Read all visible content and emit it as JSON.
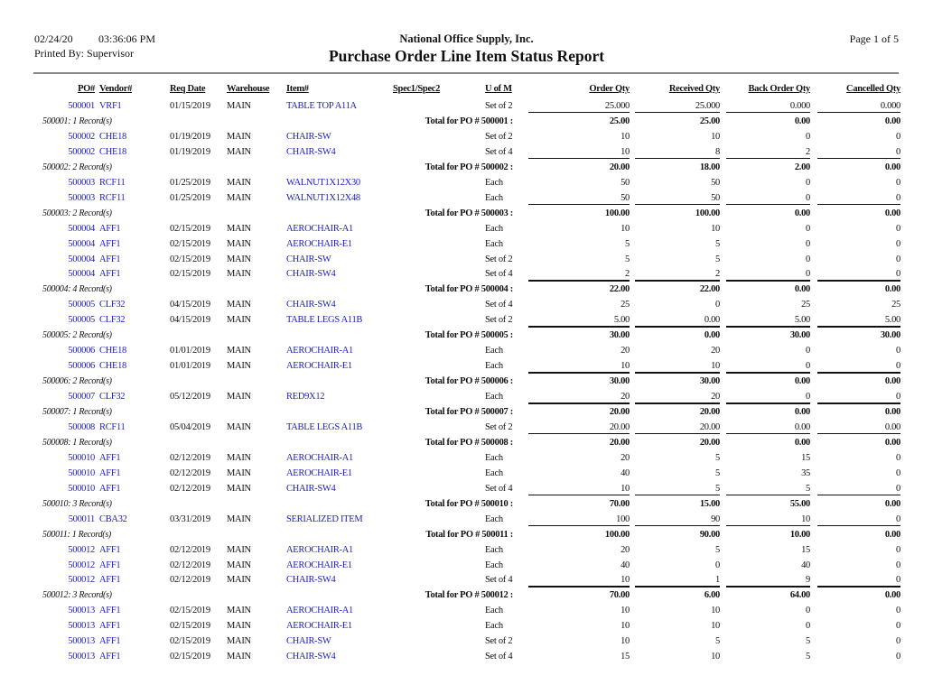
{
  "header": {
    "date": "02/24/20",
    "time": "03:36:06 PM",
    "printed_by": "Printed By: Supervisor",
    "company": "National Office Supply, Inc.",
    "title": "Purchase Order Line Item Status Report",
    "page": "Page 1 of 5"
  },
  "columns": {
    "po": "PO#",
    "vendor": "Vendor#",
    "req_date": "Req Date",
    "warehouse": "Warehouse",
    "item": "Item#",
    "spec": "Spec1/Spec2",
    "uom": "U of M",
    "order_qty": "Order Qty",
    "received_qty": "Received Qty",
    "back_order_qty": "Back Order Qty",
    "cancelled_qty": "Cancelled Qty"
  },
  "groups": [
    {
      "label": "500001: 1 Record(s)",
      "total_label": "Total for PO # 500001 :",
      "totals": [
        "25.00",
        "25.00",
        "0.00",
        "0.00"
      ],
      "rows": [
        [
          "500001",
          "VRF1",
          "01/15/2019",
          "MAIN",
          "TABLE TOP A11A",
          "",
          "Set of 2",
          "25.000",
          "25.000",
          "0.000",
          "0.000"
        ]
      ]
    },
    {
      "label": "500002: 2 Record(s)",
      "total_label": "Total for PO # 500002 :",
      "totals": [
        "20.00",
        "18.00",
        "2.00",
        "0.00"
      ],
      "rows": [
        [
          "500002",
          "CHE18",
          "01/19/2019",
          "MAIN",
          "CHAIR-SW",
          "",
          "Set of 2",
          "10",
          "10",
          "0",
          "0"
        ],
        [
          "500002",
          "CHE18",
          "01/19/2019",
          "MAIN",
          "CHAIR-SW4",
          "",
          "Set of 4",
          "10",
          "8",
          "2",
          "0"
        ]
      ]
    },
    {
      "label": "500003: 2 Record(s)",
      "total_label": "Total for PO # 500003 :",
      "totals": [
        "100.00",
        "100.00",
        "0.00",
        "0.00"
      ],
      "rows": [
        [
          "500003",
          "RCF11",
          "01/25/2019",
          "MAIN",
          "WALNUT1X12X30",
          "",
          "Each",
          "50",
          "50",
          "0",
          "0"
        ],
        [
          "500003",
          "RCF11",
          "01/25/2019",
          "MAIN",
          "WALNUT1X12X48",
          "",
          "Each",
          "50",
          "50",
          "0",
          "0"
        ]
      ]
    },
    {
      "label": "500004: 4 Record(s)",
      "total_label": "Total for PO # 500004 :",
      "totals": [
        "22.00",
        "22.00",
        "0.00",
        "0.00"
      ],
      "rows": [
        [
          "500004",
          "AFF1",
          "02/15/2019",
          "MAIN",
          "AEROCHAIR-A1",
          "",
          "Each",
          "10",
          "10",
          "0",
          "0"
        ],
        [
          "500004",
          "AFF1",
          "02/15/2019",
          "MAIN",
          "AEROCHAIR-E1",
          "",
          "Each",
          "5",
          "5",
          "0",
          "0"
        ],
        [
          "500004",
          "AFF1",
          "02/15/2019",
          "MAIN",
          "CHAIR-SW",
          "",
          "Set of 2",
          "5",
          "5",
          "0",
          "0"
        ],
        [
          "500004",
          "AFF1",
          "02/15/2019",
          "MAIN",
          "CHAIR-SW4",
          "",
          "Set of 4",
          "2",
          "2",
          "0",
          "0"
        ]
      ]
    },
    {
      "label": "500005: 2 Record(s)",
      "total_label": "Total for PO # 500005 :",
      "totals": [
        "30.00",
        "0.00",
        "30.00",
        "30.00"
      ],
      "rows": [
        [
          "500005",
          "CLF32",
          "04/15/2019",
          "MAIN",
          "CHAIR-SW4",
          "",
          "Set of 4",
          "25",
          "0",
          "25",
          "25"
        ],
        [
          "500005",
          "CLF32",
          "04/15/2019",
          "MAIN",
          "TABLE LEGS A11B",
          "",
          "Set of 2",
          "5.00",
          "0.00",
          "5.00",
          "5.00"
        ]
      ]
    },
    {
      "label": "500006: 2 Record(s)",
      "total_label": "Total for PO # 500006 :",
      "totals": [
        "30.00",
        "30.00",
        "0.00",
        "0.00"
      ],
      "rows": [
        [
          "500006",
          "CHE18",
          "01/01/2019",
          "MAIN",
          "AEROCHAIR-A1",
          "",
          "Each",
          "20",
          "20",
          "0",
          "0"
        ],
        [
          "500006",
          "CHE18",
          "01/01/2019",
          "MAIN",
          "AEROCHAIR-E1",
          "",
          "Each",
          "10",
          "10",
          "0",
          "0"
        ]
      ]
    },
    {
      "label": "500007: 1 Record(s)",
      "total_label": "Total for PO # 500007 :",
      "totals": [
        "20.00",
        "20.00",
        "0.00",
        "0.00"
      ],
      "rows": [
        [
          "500007",
          "CLF32",
          "05/12/2019",
          "MAIN",
          "RED9X12",
          "",
          "Each",
          "20",
          "20",
          "0",
          "0"
        ]
      ]
    },
    {
      "label": "500008: 1 Record(s)",
      "total_label": "Total for PO # 500008 :",
      "totals": [
        "20.00",
        "20.00",
        "0.00",
        "0.00"
      ],
      "rows": [
        [
          "500008",
          "RCF11",
          "05/04/2019",
          "MAIN",
          "TABLE LEGS A11B",
          "",
          "Set of 2",
          "20.00",
          "20.00",
          "0.00",
          "0.00"
        ]
      ]
    },
    {
      "label": "500010: 3 Record(s)",
      "total_label": "Total for PO # 500010 :",
      "totals": [
        "70.00",
        "15.00",
        "55.00",
        "0.00"
      ],
      "rows": [
        [
          "500010",
          "AFF1",
          "02/12/2019",
          "MAIN",
          "AEROCHAIR-A1",
          "",
          "Each",
          "20",
          "5",
          "15",
          "0"
        ],
        [
          "500010",
          "AFF1",
          "02/12/2019",
          "MAIN",
          "AEROCHAIR-E1",
          "",
          "Each",
          "40",
          "5",
          "35",
          "0"
        ],
        [
          "500010",
          "AFF1",
          "02/12/2019",
          "MAIN",
          "CHAIR-SW4",
          "",
          "Set of 4",
          "10",
          "5",
          "5",
          "0"
        ]
      ]
    },
    {
      "label": "500011: 1 Record(s)",
      "total_label": "Total for PO # 500011 :",
      "totals": [
        "100.00",
        "90.00",
        "10.00",
        "0.00"
      ],
      "rows": [
        [
          "500011",
          "CBA32",
          "03/31/2019",
          "MAIN",
          "SERIALIZED ITEM",
          "",
          "Each",
          "100",
          "90",
          "10",
          "0"
        ]
      ]
    },
    {
      "label": "500012: 3 Record(s)",
      "total_label": "Total for PO # 500012 :",
      "totals": [
        "70.00",
        "6.00",
        "64.00",
        "0.00"
      ],
      "rows": [
        [
          "500012",
          "AFF1",
          "02/12/2019",
          "MAIN",
          "AEROCHAIR-A1",
          "",
          "Each",
          "20",
          "5",
          "15",
          "0"
        ],
        [
          "500012",
          "AFF1",
          "02/12/2019",
          "MAIN",
          "AEROCHAIR-E1",
          "",
          "Each",
          "40",
          "0",
          "40",
          "0"
        ],
        [
          "500012",
          "AFF1",
          "02/12/2019",
          "MAIN",
          "CHAIR-SW4",
          "",
          "Set of 4",
          "10",
          "1",
          "9",
          "0"
        ]
      ]
    },
    {
      "rows": [
        [
          "500013",
          "AFF1",
          "02/15/2019",
          "MAIN",
          "AEROCHAIR-A1",
          "",
          "Each",
          "10",
          "10",
          "0",
          "0"
        ],
        [
          "500013",
          "AFF1",
          "02/15/2019",
          "MAIN",
          "AEROCHAIR-E1",
          "",
          "Each",
          "10",
          "10",
          "0",
          "0"
        ],
        [
          "500013",
          "AFF1",
          "02/15/2019",
          "MAIN",
          "CHAIR-SW",
          "",
          "Set of 2",
          "10",
          "5",
          "5",
          "0"
        ],
        [
          "500013",
          "AFF1",
          "02/15/2019",
          "MAIN",
          "CHAIR-SW4",
          "",
          "Set of 4",
          "15",
          "10",
          "5",
          "0"
        ]
      ]
    }
  ],
  "colors": {
    "link": "#1c1cc8",
    "rule": "#8a8a8a",
    "text": "#111111"
  }
}
